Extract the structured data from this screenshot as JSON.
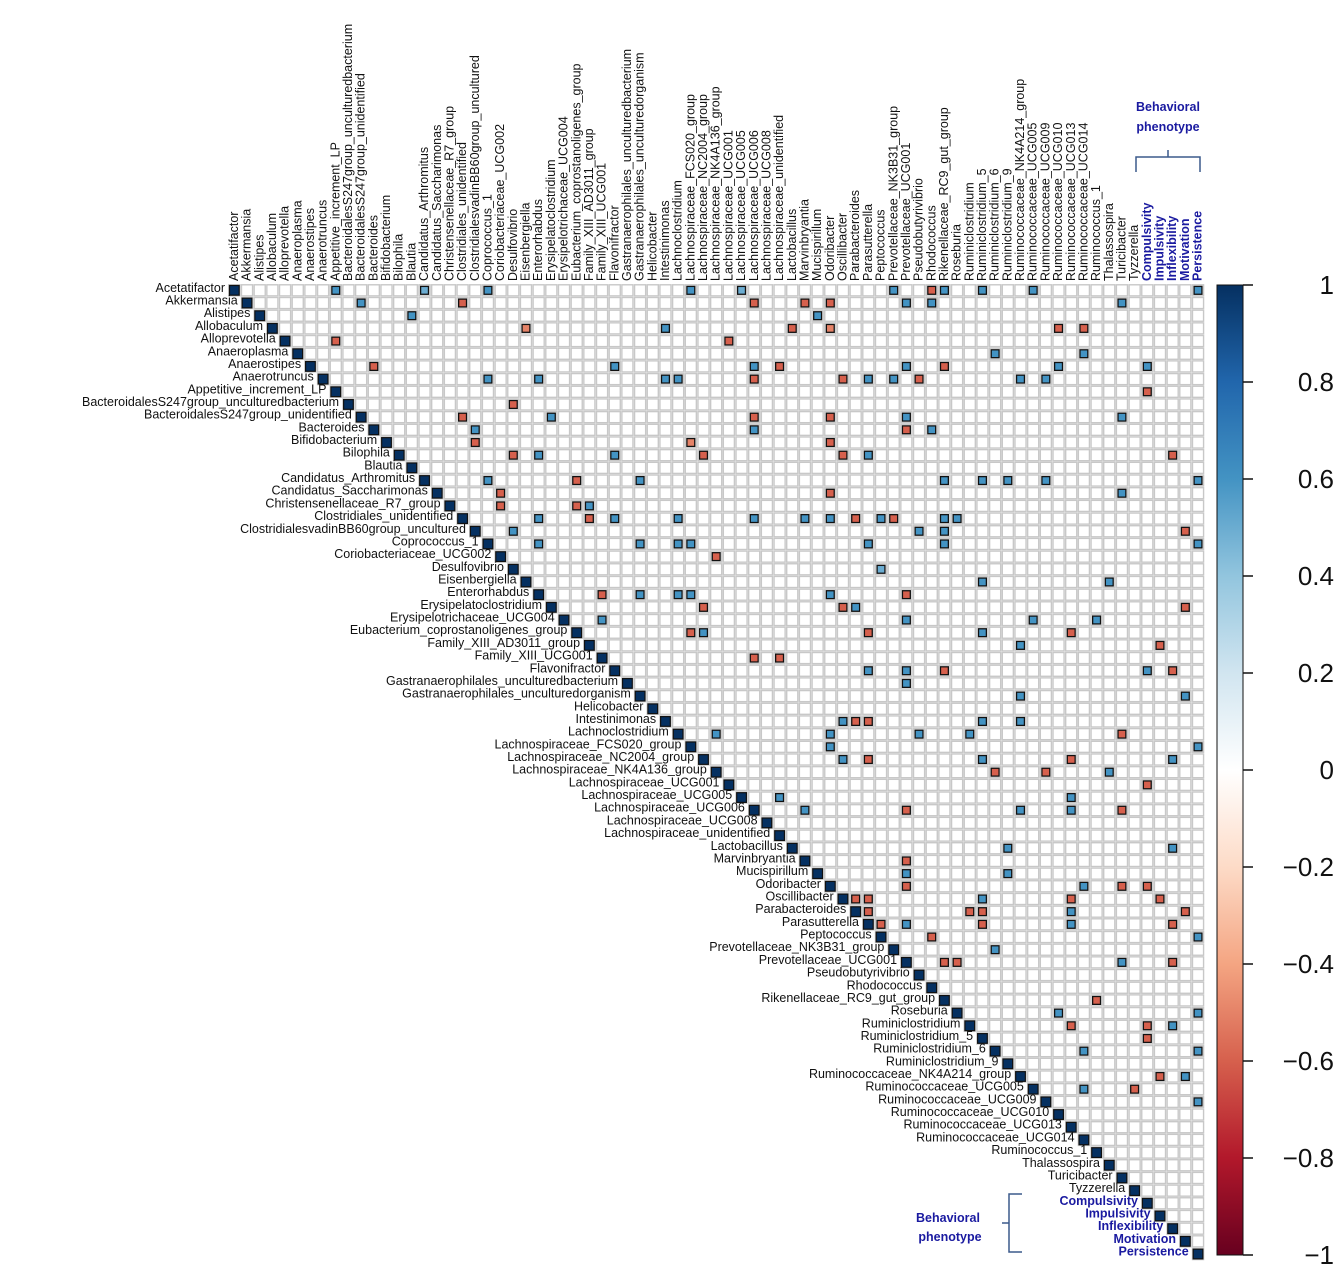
{
  "chart_data": {
    "type": "heatmap",
    "subtype": "correlation-upper-triangle",
    "variables": [
      "Acetatifactor",
      "Akkermansia",
      "Alistipes",
      "Allobaculum",
      "Alloprevotella",
      "Anaeroplasma",
      "Anaerostipes",
      "Anaerotruncus",
      "Appetitive_increment_LP",
      "BacteroidalesS247group_unculturedbacterium",
      "BacteroidalesS247group_unidentified",
      "Bacteroides",
      "Bifidobacterium",
      "Bilophila",
      "Blautia",
      "Candidatus_Arthromitus",
      "Candidatus_Saccharimonas",
      "Christensenellaceae_R7_group",
      "Clostridiales_unidentified",
      "ClostridialesvadinBB60group_uncultured",
      "Coprococcus_1",
      "Coriobacteriaceae_UCG002",
      "Desulfovibrio",
      "Eisenbergiella",
      "Enterorhabdus",
      "Erysipelatoclostridium",
      "Erysipelotrichaceae_UCG004",
      "Eubacterium_coprostanoligenes_group",
      "Family_XIII_AD3011_group",
      "Family_XIII_UCG001",
      "Flavonifractor",
      "Gastranaerophilales_unculturedbacterium",
      "Gastranaerophilales_unculturedorganism",
      "Helicobacter",
      "Intestinimonas",
      "Lachnoclostridium",
      "Lachnospiraceae_FCS020_group",
      "Lachnospiraceae_NC2004_group",
      "Lachnospiraceae_NK4A136_group",
      "Lachnospiraceae_UCG001",
      "Lachnospiraceae_UCG005",
      "Lachnospiraceae_UCG006",
      "Lachnospiraceae_UCG008",
      "Lachnospiraceae_unidentified",
      "Lactobacillus",
      "Marvinbryantia",
      "Mucispirillum",
      "Odoribacter",
      "Oscillibacter",
      "Parabacteroides",
      "Parasutterella",
      "Peptococcus",
      "Prevotellaceae_NK3B31_group",
      "Prevotellaceae_UCG001",
      "Pseudobutyrivibrio",
      "Rhodococcus",
      "Rikenellaceae_RC9_gut_group",
      "Roseburia",
      "Ruminiclostridium",
      "Ruminiclostridium_5",
      "Ruminiclostridium_6",
      "Ruminiclostridium_9",
      "Ruminococcaceae_NK4A214_group",
      "Ruminococcaceae_UCG005",
      "Ruminococcaceae_UCG009",
      "Ruminococcaceae_UCG010",
      "Ruminococcaceae_UCG013",
      "Ruminococcaceae_UCG014",
      "Ruminococcus_1",
      "Thalassospira",
      "Turicibacter",
      "Tyzzerella",
      "Compulsivity",
      "Impulsivity",
      "Inflexibility",
      "Motivation",
      "Persistence"
    ],
    "phenotype_variables": [
      "Compulsivity",
      "Impulsivity",
      "Inflexibility",
      "Motivation",
      "Persistence"
    ],
    "phenotype_group_label": "Behavioral phenotype",
    "colorbar": {
      "range": [
        -1,
        1
      ],
      "ticks": [
        "1",
        "0.8",
        "0.6",
        "0.4",
        "0.2",
        "0",
        "−0.2",
        "−0.4",
        "−0.6",
        "−0.8",
        "−1"
      ],
      "tick_values": [
        1,
        0.8,
        0.6,
        0.4,
        0.2,
        0,
        -0.2,
        -0.4,
        -0.6,
        -0.8,
        -1
      ],
      "color_stops": [
        "#67001f",
        "#b2182b",
        "#d6604d",
        "#f4a582",
        "#fddbc7",
        "#ffffff",
        "#d1e5f0",
        "#92c5de",
        "#4393c3",
        "#2166ac",
        "#053061"
      ]
    },
    "diagonal_value": 1,
    "cells": [
      [
        0,
        20,
        0.6
      ],
      [
        0,
        8,
        0.6
      ],
      [
        0,
        15,
        0.5
      ],
      [
        0,
        36,
        0.6
      ],
      [
        0,
        40,
        0.5
      ],
      [
        0,
        52,
        0.6
      ],
      [
        0,
        55,
        -0.6
      ],
      [
        0,
        56,
        0.6
      ],
      [
        0,
        59,
        0.6
      ],
      [
        0,
        63,
        0.6
      ],
      [
        0,
        76,
        0.6
      ],
      [
        1,
        10,
        0.6
      ],
      [
        1,
        18,
        -0.6
      ],
      [
        1,
        41,
        -0.6
      ],
      [
        1,
        45,
        -0.6
      ],
      [
        1,
        47,
        -0.6
      ],
      [
        1,
        53,
        0.6
      ],
      [
        1,
        55,
        0.6
      ],
      [
        1,
        70,
        0.6
      ],
      [
        2,
        14,
        0.6
      ],
      [
        2,
        46,
        0.6
      ],
      [
        3,
        23,
        -0.5
      ],
      [
        3,
        34,
        0.6
      ],
      [
        3,
        44,
        -0.6
      ],
      [
        3,
        47,
        -0.5
      ],
      [
        3,
        65,
        -0.6
      ],
      [
        3,
        67,
        -0.6
      ],
      [
        4,
        8,
        -0.6
      ],
      [
        4,
        39,
        -0.6
      ],
      [
        5,
        60,
        0.6
      ],
      [
        5,
        67,
        0.6
      ],
      [
        6,
        11,
        -0.6
      ],
      [
        6,
        30,
        0.6
      ],
      [
        6,
        41,
        0.6
      ],
      [
        6,
        43,
        -0.6
      ],
      [
        6,
        53,
        0.6
      ],
      [
        6,
        56,
        -0.6
      ],
      [
        6,
        65,
        0.6
      ],
      [
        6,
        72,
        0.6
      ],
      [
        7,
        20,
        0.6
      ],
      [
        7,
        24,
        0.6
      ],
      [
        7,
        34,
        0.6
      ],
      [
        7,
        35,
        0.6
      ],
      [
        7,
        41,
        -0.6
      ],
      [
        7,
        48,
        -0.6
      ],
      [
        7,
        50,
        0.6
      ],
      [
        7,
        52,
        0.6
      ],
      [
        7,
        54,
        -0.6
      ],
      [
        7,
        62,
        0.6
      ],
      [
        7,
        64,
        0.6
      ],
      [
        8,
        72,
        -0.6
      ],
      [
        9,
        22,
        -0.6
      ],
      [
        10,
        18,
        -0.6
      ],
      [
        10,
        25,
        0.6
      ],
      [
        10,
        41,
        -0.6
      ],
      [
        10,
        47,
        -0.6
      ],
      [
        10,
        53,
        0.6
      ],
      [
        10,
        70,
        0.6
      ],
      [
        11,
        19,
        0.6
      ],
      [
        11,
        41,
        0.6
      ],
      [
        11,
        53,
        -0.6
      ],
      [
        11,
        55,
        0.6
      ],
      [
        12,
        19,
        -0.6
      ],
      [
        12,
        36,
        -0.5
      ],
      [
        12,
        47,
        -0.6
      ],
      [
        13,
        22,
        -0.6
      ],
      [
        13,
        24,
        0.6
      ],
      [
        13,
        30,
        0.6
      ],
      [
        13,
        37,
        -0.6
      ],
      [
        13,
        48,
        -0.6
      ],
      [
        13,
        50,
        0.6
      ],
      [
        13,
        74,
        -0.6
      ],
      [
        15,
        20,
        0.6
      ],
      [
        15,
        27,
        -0.6
      ],
      [
        15,
        32,
        0.6
      ],
      [
        15,
        56,
        0.6
      ],
      [
        15,
        59,
        0.6
      ],
      [
        15,
        61,
        0.6
      ],
      [
        15,
        64,
        0.6
      ],
      [
        15,
        76,
        0.6
      ],
      [
        16,
        21,
        -0.6
      ],
      [
        16,
        47,
        -0.6
      ],
      [
        16,
        70,
        0.6
      ],
      [
        17,
        21,
        -0.6
      ],
      [
        17,
        27,
        -0.6
      ],
      [
        17,
        28,
        0.6
      ],
      [
        18,
        24,
        0.6
      ],
      [
        18,
        28,
        -0.6
      ],
      [
        18,
        30,
        0.6
      ],
      [
        18,
        35,
        0.6
      ],
      [
        18,
        41,
        0.6
      ],
      [
        18,
        45,
        0.6
      ],
      [
        18,
        47,
        0.6
      ],
      [
        18,
        49,
        -0.6
      ],
      [
        18,
        51,
        0.6
      ],
      [
        18,
        52,
        -0.6
      ],
      [
        18,
        56,
        0.6
      ],
      [
        18,
        57,
        0.6
      ],
      [
        19,
        22,
        0.6
      ],
      [
        19,
        54,
        0.6
      ],
      [
        19,
        56,
        0.6
      ],
      [
        19,
        75,
        -0.6
      ],
      [
        20,
        24,
        0.6
      ],
      [
        20,
        32,
        0.6
      ],
      [
        20,
        35,
        0.6
      ],
      [
        20,
        36,
        0.6
      ],
      [
        20,
        50,
        0.6
      ],
      [
        20,
        56,
        0.6
      ],
      [
        20,
        76,
        0.6
      ],
      [
        21,
        38,
        -0.6
      ],
      [
        22,
        51,
        0.5
      ],
      [
        23,
        59,
        0.6
      ],
      [
        23,
        69,
        0.6
      ],
      [
        24,
        29,
        -0.6
      ],
      [
        24,
        32,
        0.6
      ],
      [
        24,
        35,
        0.6
      ],
      [
        24,
        36,
        0.6
      ],
      [
        24,
        47,
        0.6
      ],
      [
        24,
        53,
        -0.6
      ],
      [
        25,
        37,
        -0.6
      ],
      [
        25,
        48,
        -0.6
      ],
      [
        25,
        49,
        0.6
      ],
      [
        25,
        75,
        -0.6
      ],
      [
        26,
        29,
        0.6
      ],
      [
        26,
        53,
        0.6
      ],
      [
        26,
        63,
        0.6
      ],
      [
        26,
        68,
        0.6
      ],
      [
        27,
        36,
        -0.6
      ],
      [
        27,
        37,
        0.6
      ],
      [
        27,
        50,
        -0.6
      ],
      [
        27,
        59,
        0.6
      ],
      [
        27,
        66,
        -0.6
      ],
      [
        28,
        62,
        0.6
      ],
      [
        28,
        73,
        -0.6
      ],
      [
        29,
        41,
        -0.6
      ],
      [
        29,
        43,
        -0.6
      ],
      [
        30,
        50,
        0.6
      ],
      [
        30,
        53,
        0.6
      ],
      [
        30,
        56,
        -0.6
      ],
      [
        30,
        72,
        0.6
      ],
      [
        30,
        74,
        -0.6
      ],
      [
        31,
        53,
        0.6
      ],
      [
        32,
        62,
        0.6
      ],
      [
        32,
        75,
        0.6
      ],
      [
        34,
        48,
        0.6
      ],
      [
        34,
        49,
        -0.6
      ],
      [
        34,
        50,
        -0.6
      ],
      [
        34,
        59,
        0.6
      ],
      [
        34,
        62,
        0.6
      ],
      [
        35,
        38,
        0.6
      ],
      [
        35,
        47,
        0.6
      ],
      [
        35,
        54,
        0.6
      ],
      [
        35,
        58,
        0.6
      ],
      [
        35,
        70,
        -0.6
      ],
      [
        36,
        47,
        0.6
      ],
      [
        36,
        76,
        0.6
      ],
      [
        37,
        48,
        0.6
      ],
      [
        37,
        50,
        -0.6
      ],
      [
        37,
        59,
        0.6
      ],
      [
        37,
        66,
        -0.6
      ],
      [
        37,
        74,
        0.6
      ],
      [
        38,
        60,
        -0.6
      ],
      [
        38,
        64,
        -0.6
      ],
      [
        38,
        69,
        0.6
      ],
      [
        39,
        72,
        -0.6
      ],
      [
        40,
        43,
        0.6
      ],
      [
        40,
        66,
        0.6
      ],
      [
        41,
        45,
        0.6
      ],
      [
        41,
        53,
        -0.6
      ],
      [
        41,
        62,
        0.6
      ],
      [
        41,
        66,
        0.6
      ],
      [
        41,
        70,
        -0.6
      ],
      [
        44,
        61,
        0.6
      ],
      [
        44,
        74,
        0.6
      ],
      [
        45,
        53,
        -0.6
      ],
      [
        46,
        53,
        0.6
      ],
      [
        46,
        61,
        0.6
      ],
      [
        47,
        53,
        -0.6
      ],
      [
        47,
        67,
        0.6
      ],
      [
        47,
        70,
        -0.6
      ],
      [
        47,
        72,
        -0.6
      ],
      [
        48,
        49,
        -0.6
      ],
      [
        48,
        50,
        -0.6
      ],
      [
        48,
        59,
        0.6
      ],
      [
        48,
        66,
        -0.6
      ],
      [
        48,
        73,
        -0.6
      ],
      [
        49,
        50,
        -0.6
      ],
      [
        49,
        58,
        -0.6
      ],
      [
        49,
        59,
        -0.6
      ],
      [
        49,
        66,
        0.6
      ],
      [
        49,
        75,
        -0.6
      ],
      [
        50,
        51,
        -0.6
      ],
      [
        50,
        53,
        0.6
      ],
      [
        50,
        59,
        -0.6
      ],
      [
        50,
        66,
        0.6
      ],
      [
        50,
        74,
        -0.6
      ],
      [
        51,
        55,
        -0.6
      ],
      [
        51,
        76,
        0.6
      ],
      [
        52,
        60,
        0.6
      ],
      [
        53,
        56,
        -0.6
      ],
      [
        53,
        57,
        -0.6
      ],
      [
        53,
        70,
        0.6
      ],
      [
        53,
        74,
        -0.6
      ],
      [
        56,
        68,
        -0.6
      ],
      [
        57,
        65,
        0.6
      ],
      [
        57,
        76,
        0.6
      ],
      [
        58,
        66,
        -0.6
      ],
      [
        58,
        72,
        -0.6
      ],
      [
        58,
        74,
        0.6
      ],
      [
        59,
        72,
        -0.6
      ],
      [
        60,
        67,
        0.6
      ],
      [
        60,
        76,
        0.6
      ],
      [
        62,
        73,
        -0.6
      ],
      [
        62,
        75,
        0.6
      ],
      [
        63,
        67,
        0.6
      ],
      [
        63,
        71,
        -0.6
      ],
      [
        64,
        76,
        0.6
      ]
    ]
  }
}
